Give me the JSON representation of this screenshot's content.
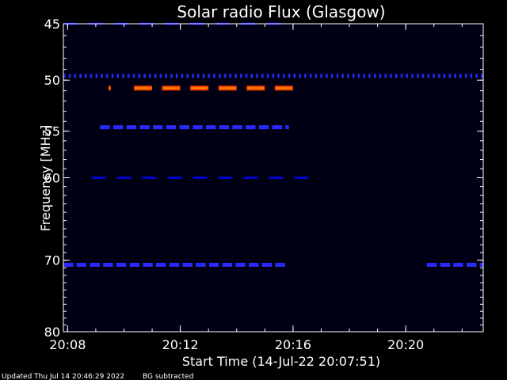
{
  "chart_data": {
    "type": "heatmap",
    "title": "Solar radio Flux (Glasgow)",
    "xlabel": "Start Time (14-Jul-22 20:07:51)",
    "ylabel": "Frequency [MHz]",
    "x_range_min": [
      0,
      14.9
    ],
    "y_range_mhz": [
      45,
      80
    ],
    "y_scale": "log",
    "x_tick_labels": [
      "20:08",
      "20:12",
      "20:16",
      "20:20"
    ],
    "x_tick_minutes": [
      0.15,
      4.15,
      8.15,
      12.15
    ],
    "y_ticks": [
      45,
      50,
      55,
      60,
      70,
      80
    ],
    "grid": false,
    "background": "#000010",
    "colors": {
      "weak": "#0000cc",
      "medium": "#2a2aff",
      "strong": "#ff4000",
      "peak": "#ff8a00",
      "text": "#ffffff"
    },
    "features": [
      {
        "freq": 49.6,
        "start": 0.0,
        "end": 14.9,
        "intensity": "dotted-weak"
      },
      {
        "freq": 50.75,
        "start": 1.6,
        "end": 8.0,
        "intensity": "strong-segments"
      },
      {
        "freq": 54.6,
        "start": 1.3,
        "end": 8.0,
        "intensity": "medium-segments"
      },
      {
        "freq": 60.0,
        "start": 1.0,
        "end": 9.0,
        "intensity": "weak-segments"
      },
      {
        "freq": 70.6,
        "start": 0.0,
        "end": 7.9,
        "intensity": "medium-segments"
      },
      {
        "freq": 70.6,
        "start": 12.9,
        "end": 14.9,
        "intensity": "medium-segments"
      },
      {
        "freq": 45.0,
        "start": 0.0,
        "end": 8.0,
        "intensity": "weak-segments"
      }
    ]
  },
  "footer": {
    "updated": "Updated Thu Jul 14 20:46:29 2022",
    "note": "BG subtracted"
  }
}
